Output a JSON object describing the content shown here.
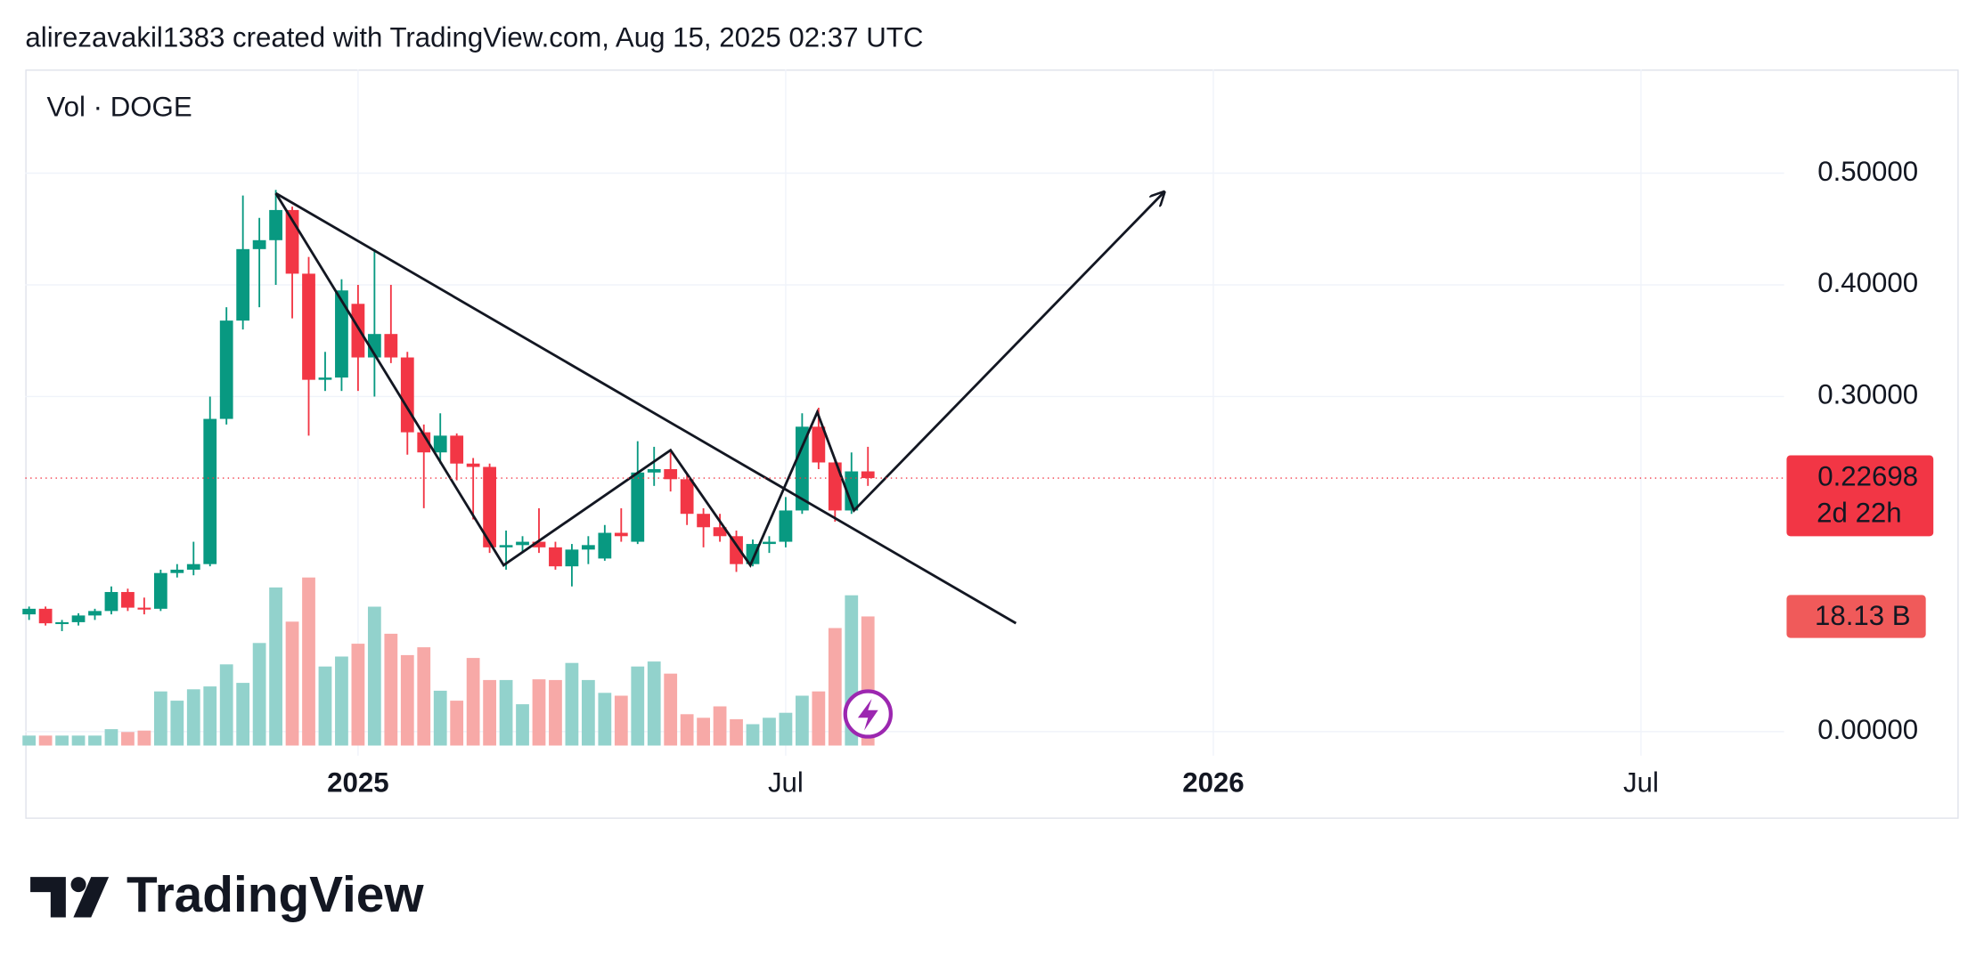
{
  "header": "alirezavakil1383 created with TradingView.com, Aug 15, 2025 02:37 UTC",
  "logo": "TradingView",
  "chart_data": {
    "type": "candlestick",
    "legend": "Vol · DOGE",
    "categories": [
      null,
      null,
      null,
      null,
      null,
      null,
      null,
      null,
      null,
      null,
      null,
      null,
      null,
      null,
      null,
      null,
      null,
      null,
      null,
      null,
      null,
      null,
      null,
      null,
      null,
      null,
      null,
      null,
      null,
      null,
      null,
      null,
      null,
      null,
      null,
      null,
      null,
      null,
      null,
      null,
      null,
      null,
      null,
      null,
      null,
      null,
      null,
      null,
      null,
      null,
      null,
      null
    ],
    "open": [
      0.105,
      0.11,
      0.097,
      0.098,
      0.104,
      0.108,
      0.125,
      0.111,
      0.11,
      0.142,
      0.145,
      0.15,
      0.28,
      0.368,
      0.432,
      0.44,
      0.467,
      0.41,
      0.315,
      0.317,
      0.383,
      0.335,
      0.356,
      0.335,
      0.268,
      0.25,
      0.265,
      0.24,
      0.237,
      0.165,
      0.167,
      0.17,
      0.165,
      0.148,
      0.163,
      0.155,
      0.178,
      0.17,
      0.232,
      0.235,
      0.226,
      0.195,
      0.183,
      0.175,
      0.15,
      0.168,
      0.17,
      0.198,
      0.273,
      0.241,
      0.198,
      0.233
    ],
    "high": [
      0.112,
      0.112,
      0.1,
      0.106,
      0.11,
      0.13,
      0.128,
      0.12,
      0.145,
      0.15,
      0.17,
      0.3,
      0.38,
      0.48,
      0.46,
      0.485,
      0.47,
      0.425,
      0.34,
      0.405,
      0.4,
      0.432,
      0.4,
      0.34,
      0.275,
      0.285,
      0.267,
      0.245,
      0.24,
      0.18,
      0.175,
      0.2,
      0.17,
      0.168,
      0.175,
      0.185,
      0.2,
      0.26,
      0.255,
      0.25,
      0.23,
      0.2,
      0.195,
      0.18,
      0.172,
      0.175,
      0.21,
      0.285,
      0.29,
      0.245,
      0.25,
      0.255
    ],
    "low": [
      0.1,
      0.095,
      0.09,
      0.095,
      0.1,
      0.105,
      0.108,
      0.105,
      0.108,
      0.138,
      0.14,
      0.148,
      0.275,
      0.36,
      0.38,
      0.4,
      0.37,
      0.265,
      0.305,
      0.305,
      0.305,
      0.3,
      0.33,
      0.248,
      0.2,
      0.24,
      0.225,
      0.19,
      0.16,
      0.145,
      0.16,
      0.16,
      0.145,
      0.13,
      0.15,
      0.153,
      0.17,
      0.168,
      0.22,
      0.215,
      0.185,
      0.165,
      0.17,
      0.143,
      0.148,
      0.16,
      0.165,
      0.195,
      0.235,
      0.188,
      0.195,
      0.22
    ],
    "close": [
      0.11,
      0.097,
      0.098,
      0.104,
      0.108,
      0.125,
      0.111,
      0.11,
      0.142,
      0.145,
      0.15,
      0.28,
      0.368,
      0.432,
      0.44,
      0.467,
      0.41,
      0.315,
      0.317,
      0.395,
      0.335,
      0.356,
      0.335,
      0.268,
      0.25,
      0.265,
      0.24,
      0.237,
      0.165,
      0.167,
      0.17,
      0.165,
      0.148,
      0.163,
      0.167,
      0.178,
      0.175,
      0.232,
      0.235,
      0.226,
      0.195,
      0.183,
      0.175,
      0.15,
      0.168,
      0.17,
      0.198,
      0.273,
      0.241,
      0.198,
      0.233,
      0.22698
    ],
    "volume": [
      1.4,
      1.4,
      1.4,
      1.4,
      1.4,
      2.3,
      1.9,
      2.1,
      7.6,
      6.3,
      7.9,
      8.3,
      11.4,
      8.8,
      14.4,
      22.2,
      17.4,
      23.6,
      11.1,
      12.5,
      14.3,
      19.5,
      15.7,
      12.7,
      13.8,
      7.7,
      6.3,
      12.3,
      9.2,
      9.2,
      5.8,
      9.3,
      9.2,
      11.6,
      9.2,
      7.4,
      7.0,
      11.1,
      11.8,
      10.1,
      4.4,
      3.9,
      5.5,
      3.7,
      3.0,
      3.9,
      4.6,
      7.0,
      7.6,
      16.5,
      21.1,
      18.13
    ],
    "volume_value_labels": [
      null,
      null,
      null,
      null,
      null,
      null,
      null,
      null,
      null,
      null,
      null,
      null,
      null,
      null,
      null,
      null,
      null,
      null,
      null,
      null,
      null,
      null,
      null,
      null,
      null,
      null,
      null,
      null,
      null,
      null,
      null,
      null,
      null,
      null,
      null,
      null,
      null,
      null,
      null,
      null,
      null,
      null,
      null,
      null,
      null,
      null,
      null,
      null,
      null,
      null,
      null,
      "18.13 B"
    ],
    "countdown": "2d 22h",
    "up_color": "#089981",
    "down_color": "#f23645",
    "volume_up_color": "#92d2cc",
    "volume_down_color": "#f7a9a7",
    "xlim": [
      -0.23,
      106.7
    ],
    "xticks": [
      {
        "value": 20,
        "label": "2025"
      },
      {
        "value": 46,
        "label": "Jul"
      },
      {
        "value": 72,
        "label": "2026"
      },
      {
        "value": 98,
        "label": "Jul"
      }
    ],
    "ylim": [
      -0.0215,
      0.5928
    ],
    "yticks": [
      {
        "value": 0.5,
        "label": "0.50000"
      },
      {
        "value": 0.4,
        "label": "0.40000"
      },
      {
        "value": 0.3,
        "label": "0.30000"
      },
      {
        "value": 0,
        "label": "0.00000"
      }
    ],
    "grid": true,
    "drawings": [
      {
        "x": [
          15.0,
          28.85,
          39.0,
          43.85,
          47.92,
          50.15,
          69.0
        ],
        "y": [
          0.482,
          0.149,
          0.252,
          0.149,
          0.286,
          0.198,
          0.483
        ],
        "arrow": true
      },
      {
        "x": [
          15.0,
          60.0
        ],
        "y": [
          0.482,
          0.097
        ],
        "arrow": false
      }
    ]
  }
}
